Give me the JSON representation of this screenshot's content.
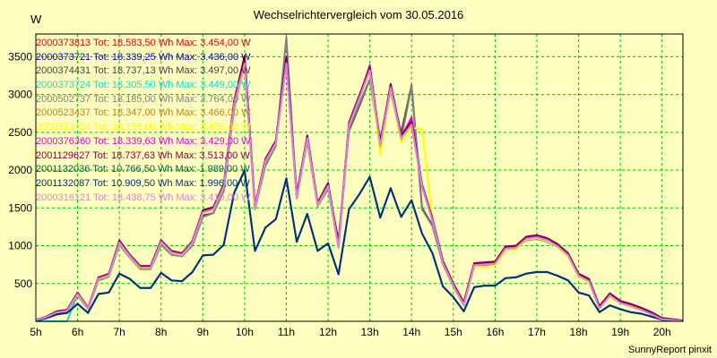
{
  "chart_data": {
    "type": "line",
    "title": "Wechselrichtervergleich vom 30.05.2016",
    "ylabel": "W",
    "footer": "SunnyReport pinxit",
    "ylim": [
      0,
      3800
    ],
    "xlim": [
      5,
      20.5
    ],
    "yticks": [
      500,
      1000,
      1500,
      2000,
      2500,
      3000,
      3500
    ],
    "xtick_labels": [
      "5h",
      "6h",
      "7h",
      "8h",
      "9h",
      "10h",
      "11h",
      "12h",
      "13h",
      "14h",
      "15h",
      "16h",
      "17h",
      "18h",
      "19h",
      "20h"
    ],
    "x": [
      5,
      5.25,
      5.5,
      5.75,
      6,
      6.25,
      6.5,
      6.75,
      7,
      7.25,
      7.5,
      7.75,
      8,
      8.25,
      8.5,
      8.75,
      9,
      9.25,
      9.5,
      9.75,
      10,
      10.25,
      10.5,
      10.75,
      11,
      11.25,
      11.5,
      11.75,
      12,
      12.25,
      12.5,
      12.75,
      13,
      13.25,
      13.5,
      13.75,
      14,
      14.25,
      14.5,
      14.75,
      15,
      15.25,
      15.5,
      15.75,
      16,
      16.25,
      16.5,
      16.75,
      17,
      17.25,
      17.5,
      17.75,
      18,
      18.25,
      18.5,
      18.75,
      19,
      19.25,
      19.5,
      19.75,
      20,
      20.5
    ],
    "series": [
      {
        "name": "2000373813",
        "legend": "2000373813 Tot: 18.583,50 Wh Max: 3.454,00 W",
        "color": "#e00000",
        "values": [
          20,
          60,
          130,
          150,
          380,
          180,
          580,
          630,
          1060,
          880,
          730,
          730,
          1070,
          930,
          900,
          1060,
          1460,
          1500,
          1800,
          2900,
          3450,
          1520,
          2140,
          2380,
          3450,
          1650,
          2450,
          1560,
          1820,
          1000,
          2620,
          2980,
          3350,
          2350,
          3130,
          2450,
          2630,
          1800,
          1350,
          790,
          490,
          240,
          760,
          770,
          780,
          980,
          990,
          1110,
          1130,
          1090,
          1010,
          890,
          620,
          550,
          190,
          360,
          260,
          220,
          170,
          110,
          40,
          10
        ]
      },
      {
        "name": "2000373721",
        "legend": "2000373721 Tot: 18.339,25 Wh Max: 3.436,00 W",
        "color": "#0000a0",
        "values": [
          15,
          55,
          120,
          140,
          370,
          170,
          570,
          620,
          1050,
          870,
          720,
          720,
          1060,
          920,
          890,
          1050,
          1450,
          1490,
          1780,
          2880,
          3430,
          1510,
          2130,
          2370,
          3420,
          1640,
          2430,
          1550,
          1800,
          990,
          2600,
          2960,
          3330,
          2330,
          3100,
          2430,
          2610,
          1790,
          1340,
          780,
          480,
          230,
          750,
          760,
          770,
          970,
          980,
          1100,
          1120,
          1080,
          1000,
          880,
          610,
          540,
          180,
          350,
          250,
          210,
          160,
          100,
          30,
          8
        ]
      },
      {
        "name": "2000374431",
        "legend": "2000374431 Tot: 18.737,13 Wh Max: 3.497,00 W",
        "color": "#404040",
        "values": [
          20,
          60,
          130,
          150,
          370,
          170,
          560,
          600,
          1050,
          860,
          700,
          720,
          1040,
          900,
          860,
          1010,
          1400,
          1430,
          1730,
          2860,
          3480,
          1520,
          2100,
          2380,
          3490,
          1690,
          2430,
          1540,
          1780,
          1070,
          2520,
          2850,
          3200,
          2400,
          3060,
          2490,
          3120,
          1500,
          1270,
          760,
          470,
          220,
          740,
          750,
          760,
          970,
          990,
          1090,
          1100,
          1060,
          990,
          870,
          600,
          530,
          180,
          340,
          250,
          200,
          160,
          100,
          30,
          8
        ]
      },
      {
        "name": "2000373724",
        "legend": "2000373724 Tot: 18.305,50 Wh Max: 3.449,00 W",
        "color": "#00e0e0",
        "values": [
          0,
          0,
          0,
          0,
          360,
          170,
          560,
          610,
          1040,
          860,
          710,
          710,
          1050,
          910,
          880,
          1040,
          1440,
          1480,
          1780,
          2870,
          3440,
          1500,
          2120,
          2360,
          3440,
          1630,
          2420,
          1540,
          1790,
          980,
          2590,
          2950,
          3320,
          2320,
          3090,
          2420,
          2600,
          1780,
          1330,
          770,
          470,
          220,
          740,
          750,
          760,
          960,
          970,
          1090,
          1110,
          1070,
          990,
          870,
          600,
          530,
          170,
          340,
          240,
          200,
          150,
          90,
          25,
          5
        ]
      },
      {
        "name": "2000502737",
        "legend": "2000502737 Tot: 18.185,00 Wh Max: 3.764,00 W",
        "color": "#808080",
        "values": [
          15,
          50,
          110,
          130,
          340,
          160,
          540,
          590,
          1010,
          840,
          690,
          690,
          1010,
          880,
          860,
          1000,
          1380,
          1430,
          1720,
          2820,
          3390,
          1480,
          2060,
          2320,
          3760,
          1620,
          2380,
          1520,
          1750,
          970,
          2540,
          2880,
          3200,
          2300,
          3050,
          2400,
          3110,
          1480,
          1260,
          750,
          460,
          210,
          720,
          730,
          740,
          940,
          960,
          1070,
          1090,
          1050,
          980,
          860,
          590,
          520,
          170,
          330,
          240,
          190,
          150,
          90,
          25,
          5
        ]
      },
      {
        "name": "2000523437",
        "legend": "2000523437 Tot: 18.347,00 Wh Max: 3.466,00 W",
        "color": "#c08020",
        "values": [
          18,
          55,
          120,
          140,
          365,
          170,
          565,
          615,
          1045,
          865,
          715,
          715,
          1055,
          915,
          885,
          1045,
          1445,
          1485,
          1785,
          2875,
          3440,
          1505,
          2125,
          2365,
          3460,
          1635,
          2425,
          1545,
          1795,
          985,
          2595,
          2955,
          3325,
          2325,
          3095,
          2425,
          2605,
          1785,
          1335,
          775,
          475,
          225,
          745,
          755,
          765,
          965,
          975,
          1095,
          1115,
          1075,
          995,
          875,
          605,
          535,
          175,
          345,
          245,
          205,
          155,
          95,
          28,
          6
        ]
      },
      {
        "name": "2000523424",
        "legend": "2000523424 Tot: 18.156,00 Wh Max: 3.466,00 W",
        "color": "#ffff00",
        "values": [
          15,
          50,
          115,
          135,
          355,
          165,
          555,
          605,
          1035,
          855,
          705,
          705,
          1045,
          905,
          875,
          1035,
          1435,
          1475,
          1775,
          2865,
          3380,
          1495,
          2115,
          2355,
          3460,
          1625,
          2415,
          1535,
          1785,
          975,
          2585,
          2945,
          3315,
          2200,
          3085,
          2360,
          2560,
          2540,
          1350,
          770,
          470,
          220,
          720,
          720,
          740,
          940,
          950,
          1080,
          1100,
          1060,
          980,
          860,
          590,
          520,
          170,
          330,
          240,
          190,
          150,
          90,
          25,
          5
        ]
      },
      {
        "name": "2000376360",
        "legend": "2000376360 Tot: 18.339,63 Wh Max: 3.429,00 W",
        "color": "#e000e0",
        "values": [
          18,
          55,
          120,
          140,
          368,
          172,
          568,
          618,
          1048,
          868,
          718,
          718,
          1058,
          918,
          888,
          1048,
          1448,
          1488,
          1788,
          2878,
          3420,
          1508,
          2128,
          2368,
          3420,
          1638,
          2428,
          1548,
          1798,
          988,
          2598,
          2958,
          3390,
          2328,
          3098,
          2428,
          2700,
          1788,
          1338,
          778,
          478,
          228,
          748,
          758,
          768,
          968,
          978,
          1098,
          1118,
          1078,
          998,
          878,
          608,
          538,
          178,
          348,
          248,
          208,
          158,
          98,
          28,
          6
        ]
      },
      {
        "name": "2001129627",
        "legend": "2001129627 Tot: 18.737,63 Wh Max: 3.513,00 W",
        "color": "#800040",
        "values": [
          20,
          60,
          132,
          152,
          375,
          178,
          575,
          625,
          1070,
          880,
          730,
          730,
          1070,
          930,
          900,
          1060,
          1470,
          1510,
          1810,
          2920,
          3510,
          1530,
          2150,
          2390,
          3500,
          1660,
          2460,
          1570,
          1830,
          1010,
          2630,
          2990,
          3360,
          2360,
          3140,
          2460,
          2640,
          1810,
          1360,
          800,
          500,
          250,
          770,
          780,
          790,
          990,
          1000,
          1120,
          1140,
          1100,
          1020,
          900,
          630,
          560,
          200,
          370,
          270,
          230,
          180,
          120,
          45,
          12
        ]
      },
      {
        "name": "2001132036",
        "legend": "2001132036 Tot: 10.766,50 Wh Max: 1.989,00 W",
        "color": "#006040",
        "values": [
          10,
          40,
          90,
          110,
          230,
          110,
          360,
          380,
          630,
          560,
          440,
          440,
          640,
          540,
          530,
          650,
          870,
          880,
          1010,
          1700,
          1990,
          930,
          1240,
          1350,
          1890,
          1050,
          1420,
          930,
          1030,
          620,
          1480,
          1680,
          1910,
          1370,
          1760,
          1380,
          1600,
          1160,
          900,
          460,
          320,
          130,
          450,
          470,
          470,
          570,
          580,
          630,
          650,
          650,
          600,
          540,
          380,
          340,
          120,
          210,
          160,
          120,
          100,
          60,
          20,
          5
        ]
      },
      {
        "name": "2001132087",
        "legend": "2001132087 Tot: 10.909,50 Wh Max: 1.996,00 W",
        "color": "#003080",
        "values": [
          10,
          40,
          92,
          112,
          232,
          112,
          362,
          382,
          632,
          562,
          442,
          442,
          642,
          542,
          532,
          652,
          872,
          882,
          1012,
          1702,
          1996,
          932,
          1242,
          1352,
          1892,
          1052,
          1422,
          932,
          1032,
          622,
          1482,
          1682,
          1912,
          1372,
          1762,
          1382,
          1602,
          1162,
          902,
          462,
          322,
          132,
          452,
          472,
          472,
          572,
          582,
          632,
          652,
          652,
          602,
          542,
          382,
          342,
          122,
          212,
          162,
          122,
          102,
          62,
          22,
          5
        ]
      },
      {
        "name": "2000316121",
        "legend": "2000316121 Tot: 18.438,75 Wh Max: 3.410,00 W",
        "color": "#e080e0",
        "values": [
          16,
          55,
          118,
          138,
          362,
          170,
          562,
          612,
          1042,
          862,
          712,
          712,
          1052,
          912,
          882,
          1042,
          1442,
          1482,
          1782,
          2872,
          3410,
          1502,
          2122,
          2362,
          3410,
          1632,
          2422,
          1542,
          1792,
          982,
          2592,
          2952,
          3322,
          2322,
          3092,
          2422,
          2602,
          1782,
          1332,
          772,
          472,
          222,
          742,
          752,
          762,
          962,
          972,
          1092,
          1112,
          1072,
          992,
          872,
          602,
          532,
          172,
          342,
          242,
          202,
          152,
          92,
          26,
          6
        ]
      }
    ]
  }
}
